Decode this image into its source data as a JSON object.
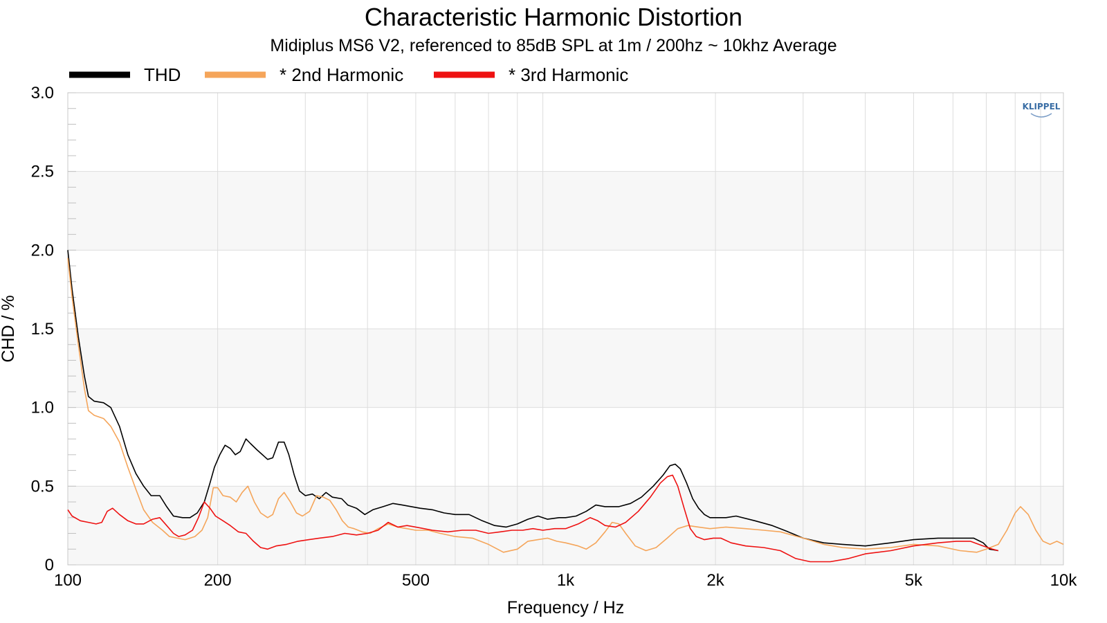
{
  "chart_data": {
    "type": "line",
    "title": "Characteristic Harmonic Distortion",
    "subtitle": "Midiplus MS6 V2, referenced to 85dB SPL at 1m / 200hz ~ 10khz Average",
    "xlabel": "Frequency / Hz",
    "ylabel": "CHD / %",
    "xscale": "log",
    "xlim": [
      100,
      10000
    ],
    "ylim": [
      0,
      3.0
    ],
    "x_ticks": [
      {
        "value": 100,
        "label": "100"
      },
      {
        "value": 200,
        "label": "200"
      },
      {
        "value": 500,
        "label": "500"
      },
      {
        "value": 1000,
        "label": "1k"
      },
      {
        "value": 2000,
        "label": "2k"
      },
      {
        "value": 5000,
        "label": "5k"
      },
      {
        "value": 10000,
        "label": "10k"
      }
    ],
    "y_ticks": [
      {
        "value": 0,
        "label": "0"
      },
      {
        "value": 0.5,
        "label": "0.5"
      },
      {
        "value": 1.0,
        "label": "1.0"
      },
      {
        "value": 1.5,
        "label": "1.5"
      },
      {
        "value": 2.0,
        "label": "2.0"
      },
      {
        "value": 2.5,
        "label": "2.5"
      },
      {
        "value": 3.0,
        "label": "3.0"
      }
    ],
    "grid": true,
    "legend_position": "top-left",
    "logo": "KLIPPEL",
    "series": [
      {
        "name": "THD",
        "color": "#000000",
        "points": [
          [
            100,
            2.0
          ],
          [
            102,
            1.75
          ],
          [
            105,
            1.45
          ],
          [
            108,
            1.2
          ],
          [
            110,
            1.07
          ],
          [
            113,
            1.04
          ],
          [
            118,
            1.03
          ],
          [
            122,
            1.0
          ],
          [
            127,
            0.88
          ],
          [
            132,
            0.7
          ],
          [
            137,
            0.58
          ],
          [
            142,
            0.5
          ],
          [
            147,
            0.44
          ],
          [
            153,
            0.44
          ],
          [
            158,
            0.37
          ],
          [
            163,
            0.31
          ],
          [
            170,
            0.3
          ],
          [
            176,
            0.3
          ],
          [
            182,
            0.33
          ],
          [
            188,
            0.4
          ],
          [
            193,
            0.52
          ],
          [
            197,
            0.62
          ],
          [
            202,
            0.7
          ],
          [
            207,
            0.76
          ],
          [
            212,
            0.74
          ],
          [
            217,
            0.7
          ],
          [
            222,
            0.72
          ],
          [
            228,
            0.8
          ],
          [
            233,
            0.77
          ],
          [
            240,
            0.73
          ],
          [
            246,
            0.7
          ],
          [
            252,
            0.67
          ],
          [
            258,
            0.68
          ],
          [
            265,
            0.78
          ],
          [
            272,
            0.78
          ],
          [
            278,
            0.7
          ],
          [
            285,
            0.57
          ],
          [
            292,
            0.47
          ],
          [
            300,
            0.44
          ],
          [
            310,
            0.45
          ],
          [
            320,
            0.42
          ],
          [
            330,
            0.46
          ],
          [
            340,
            0.43
          ],
          [
            355,
            0.42
          ],
          [
            365,
            0.38
          ],
          [
            380,
            0.36
          ],
          [
            395,
            0.32
          ],
          [
            410,
            0.35
          ],
          [
            430,
            0.37
          ],
          [
            450,
            0.39
          ],
          [
            470,
            0.38
          ],
          [
            490,
            0.37
          ],
          [
            510,
            0.36
          ],
          [
            540,
            0.35
          ],
          [
            570,
            0.33
          ],
          [
            600,
            0.32
          ],
          [
            640,
            0.32
          ],
          [
            680,
            0.28
          ],
          [
            720,
            0.25
          ],
          [
            760,
            0.24
          ],
          [
            800,
            0.26
          ],
          [
            840,
            0.29
          ],
          [
            880,
            0.31
          ],
          [
            920,
            0.29
          ],
          [
            970,
            0.3
          ],
          [
            1000,
            0.3
          ],
          [
            1050,
            0.31
          ],
          [
            1100,
            0.34
          ],
          [
            1150,
            0.38
          ],
          [
            1200,
            0.37
          ],
          [
            1280,
            0.37
          ],
          [
            1350,
            0.39
          ],
          [
            1420,
            0.43
          ],
          [
            1500,
            0.5
          ],
          [
            1570,
            0.57
          ],
          [
            1620,
            0.63
          ],
          [
            1660,
            0.64
          ],
          [
            1700,
            0.61
          ],
          [
            1750,
            0.52
          ],
          [
            1800,
            0.42
          ],
          [
            1850,
            0.36
          ],
          [
            1900,
            0.32
          ],
          [
            1950,
            0.3
          ],
          [
            2000,
            0.3
          ],
          [
            2100,
            0.3
          ],
          [
            2200,
            0.31
          ],
          [
            2400,
            0.28
          ],
          [
            2600,
            0.25
          ],
          [
            2800,
            0.21
          ],
          [
            3000,
            0.17
          ],
          [
            3300,
            0.14
          ],
          [
            3600,
            0.13
          ],
          [
            4000,
            0.12
          ],
          [
            4500,
            0.14
          ],
          [
            5000,
            0.16
          ],
          [
            5600,
            0.17
          ],
          [
            6200,
            0.17
          ],
          [
            6600,
            0.17
          ],
          [
            6900,
            0.14
          ],
          [
            7100,
            0.1
          ],
          [
            7400,
            0.09
          ]
        ]
      },
      {
        "name": "* 2nd Harmonic",
        "color": "#f5a55a",
        "points": [
          [
            100,
            1.95
          ],
          [
            102,
            1.7
          ],
          [
            105,
            1.4
          ],
          [
            108,
            1.12
          ],
          [
            110,
            0.98
          ],
          [
            113,
            0.95
          ],
          [
            118,
            0.93
          ],
          [
            122,
            0.88
          ],
          [
            127,
            0.78
          ],
          [
            132,
            0.62
          ],
          [
            137,
            0.48
          ],
          [
            142,
            0.35
          ],
          [
            148,
            0.27
          ],
          [
            155,
            0.22
          ],
          [
            160,
            0.18
          ],
          [
            166,
            0.17
          ],
          [
            172,
            0.16
          ],
          [
            180,
            0.18
          ],
          [
            186,
            0.22
          ],
          [
            191,
            0.3
          ],
          [
            196,
            0.49
          ],
          [
            200,
            0.49
          ],
          [
            205,
            0.44
          ],
          [
            212,
            0.43
          ],
          [
            218,
            0.4
          ],
          [
            224,
            0.46
          ],
          [
            230,
            0.5
          ],
          [
            237,
            0.4
          ],
          [
            244,
            0.33
          ],
          [
            252,
            0.3
          ],
          [
            258,
            0.32
          ],
          [
            265,
            0.42
          ],
          [
            272,
            0.46
          ],
          [
            280,
            0.4
          ],
          [
            288,
            0.33
          ],
          [
            296,
            0.31
          ],
          [
            306,
            0.34
          ],
          [
            316,
            0.44
          ],
          [
            326,
            0.43
          ],
          [
            336,
            0.41
          ],
          [
            346,
            0.35
          ],
          [
            356,
            0.28
          ],
          [
            366,
            0.24
          ],
          [
            376,
            0.23
          ],
          [
            390,
            0.21
          ],
          [
            405,
            0.2
          ],
          [
            420,
            0.23
          ],
          [
            440,
            0.26
          ],
          [
            460,
            0.24
          ],
          [
            480,
            0.23
          ],
          [
            500,
            0.22
          ],
          [
            530,
            0.22
          ],
          [
            560,
            0.2
          ],
          [
            600,
            0.18
          ],
          [
            650,
            0.17
          ],
          [
            700,
            0.13
          ],
          [
            750,
            0.08
          ],
          [
            800,
            0.1
          ],
          [
            840,
            0.15
          ],
          [
            880,
            0.16
          ],
          [
            920,
            0.17
          ],
          [
            960,
            0.15
          ],
          [
            1000,
            0.14
          ],
          [
            1060,
            0.12
          ],
          [
            1100,
            0.1
          ],
          [
            1150,
            0.14
          ],
          [
            1200,
            0.21
          ],
          [
            1240,
            0.27
          ],
          [
            1280,
            0.26
          ],
          [
            1320,
            0.2
          ],
          [
            1380,
            0.12
          ],
          [
            1450,
            0.09
          ],
          [
            1520,
            0.11
          ],
          [
            1600,
            0.17
          ],
          [
            1680,
            0.23
          ],
          [
            1760,
            0.25
          ],
          [
            1850,
            0.24
          ],
          [
            1950,
            0.23
          ],
          [
            2100,
            0.24
          ],
          [
            2300,
            0.23
          ],
          [
            2500,
            0.22
          ],
          [
            2700,
            0.21
          ],
          [
            3000,
            0.17
          ],
          [
            3300,
            0.13
          ],
          [
            3600,
            0.11
          ],
          [
            4000,
            0.1
          ],
          [
            4500,
            0.11
          ],
          [
            5000,
            0.13
          ],
          [
            5600,
            0.12
          ],
          [
            6200,
            0.09
          ],
          [
            6700,
            0.08
          ],
          [
            7000,
            0.1
          ],
          [
            7400,
            0.13
          ],
          [
            7700,
            0.22
          ],
          [
            8000,
            0.33
          ],
          [
            8200,
            0.37
          ],
          [
            8500,
            0.32
          ],
          [
            8800,
            0.22
          ],
          [
            9100,
            0.15
          ],
          [
            9400,
            0.13
          ],
          [
            9700,
            0.15
          ],
          [
            10000,
            0.13
          ]
        ]
      },
      {
        "name": "* 3rd Harmonic",
        "color": "#ee1111",
        "points": [
          [
            100,
            0.35
          ],
          [
            102,
            0.31
          ],
          [
            106,
            0.28
          ],
          [
            110,
            0.27
          ],
          [
            114,
            0.26
          ],
          [
            117,
            0.27
          ],
          [
            120,
            0.34
          ],
          [
            123,
            0.36
          ],
          [
            127,
            0.32
          ],
          [
            132,
            0.28
          ],
          [
            137,
            0.26
          ],
          [
            142,
            0.26
          ],
          [
            148,
            0.29
          ],
          [
            153,
            0.3
          ],
          [
            158,
            0.25
          ],
          [
            163,
            0.2
          ],
          [
            167,
            0.18
          ],
          [
            172,
            0.19
          ],
          [
            178,
            0.22
          ],
          [
            183,
            0.3
          ],
          [
            188,
            0.4
          ],
          [
            193,
            0.36
          ],
          [
            198,
            0.31
          ],
          [
            205,
            0.28
          ],
          [
            212,
            0.25
          ],
          [
            220,
            0.21
          ],
          [
            228,
            0.2
          ],
          [
            236,
            0.15
          ],
          [
            244,
            0.11
          ],
          [
            252,
            0.1
          ],
          [
            262,
            0.12
          ],
          [
            275,
            0.13
          ],
          [
            290,
            0.15
          ],
          [
            305,
            0.16
          ],
          [
            320,
            0.17
          ],
          [
            340,
            0.18
          ],
          [
            360,
            0.2
          ],
          [
            380,
            0.19
          ],
          [
            400,
            0.2
          ],
          [
            420,
            0.22
          ],
          [
            440,
            0.27
          ],
          [
            460,
            0.24
          ],
          [
            480,
            0.25
          ],
          [
            500,
            0.24
          ],
          [
            540,
            0.22
          ],
          [
            580,
            0.21
          ],
          [
            620,
            0.22
          ],
          [
            660,
            0.22
          ],
          [
            700,
            0.2
          ],
          [
            740,
            0.21
          ],
          [
            780,
            0.22
          ],
          [
            820,
            0.22
          ],
          [
            860,
            0.23
          ],
          [
            900,
            0.22
          ],
          [
            950,
            0.23
          ],
          [
            1000,
            0.23
          ],
          [
            1060,
            0.26
          ],
          [
            1120,
            0.3
          ],
          [
            1160,
            0.28
          ],
          [
            1200,
            0.25
          ],
          [
            1260,
            0.24
          ],
          [
            1320,
            0.27
          ],
          [
            1400,
            0.34
          ],
          [
            1480,
            0.43
          ],
          [
            1550,
            0.52
          ],
          [
            1600,
            0.56
          ],
          [
            1640,
            0.57
          ],
          [
            1680,
            0.5
          ],
          [
            1730,
            0.36
          ],
          [
            1780,
            0.23
          ],
          [
            1830,
            0.18
          ],
          [
            1900,
            0.16
          ],
          [
            1980,
            0.17
          ],
          [
            2050,
            0.17
          ],
          [
            2150,
            0.14
          ],
          [
            2300,
            0.12
          ],
          [
            2500,
            0.11
          ],
          [
            2700,
            0.09
          ],
          [
            2900,
            0.04
          ],
          [
            3100,
            0.02
          ],
          [
            3400,
            0.02
          ],
          [
            3700,
            0.04
          ],
          [
            4000,
            0.07
          ],
          [
            4500,
            0.09
          ],
          [
            5000,
            0.12
          ],
          [
            5600,
            0.14
          ],
          [
            6100,
            0.15
          ],
          [
            6500,
            0.15
          ],
          [
            6900,
            0.12
          ],
          [
            7200,
            0.1
          ],
          [
            7400,
            0.09
          ]
        ]
      }
    ]
  }
}
